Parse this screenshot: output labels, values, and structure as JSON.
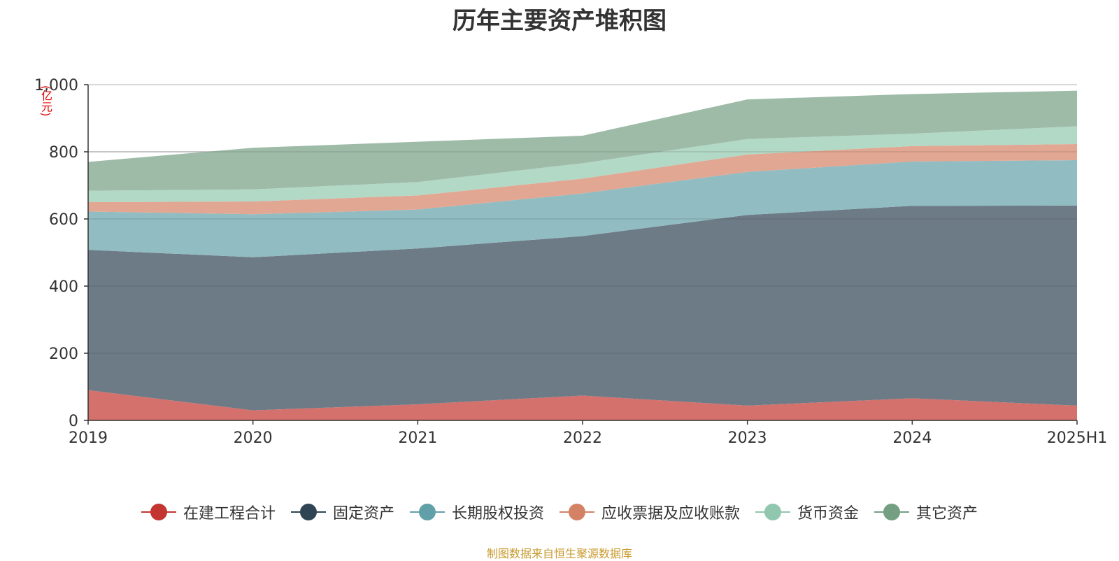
{
  "title": "历年主要资产堆积图",
  "unit_label": "(亿元)",
  "source": "制图数据来自恒生聚源数据库",
  "chart_data": {
    "type": "area",
    "stacked": true,
    "title": "历年主要资产堆积图",
    "ylabel": "(亿元)",
    "x": [
      "2019",
      "2020",
      "2021",
      "2022",
      "2023",
      "2024",
      "2025H1"
    ],
    "ylim": [
      0,
      1000
    ],
    "yticks": [
      0,
      200,
      400,
      600,
      800,
      1000
    ],
    "ytick_labels": [
      "0",
      "200",
      "400",
      "600",
      "800",
      "1,000"
    ],
    "grid": true,
    "legend_position": "bottom",
    "series": [
      {
        "name": "在建工程合计",
        "color": "#c23531",
        "fill": "#d4716d",
        "values": [
          90,
          30,
          48,
          74,
          44,
          66,
          44
        ]
      },
      {
        "name": "固定资产",
        "color": "#2f4554",
        "fill": "#6d7b86",
        "values": [
          418,
          456,
          464,
          475,
          568,
          573,
          596
        ]
      },
      {
        "name": "长期股权投资",
        "color": "#61a0a8",
        "fill": "#90bcc2",
        "values": [
          114,
          128,
          116,
          127,
          128,
          132,
          135
        ]
      },
      {
        "name": "应收票据及应收账款",
        "color": "#d48265",
        "fill": "#e1a792",
        "values": [
          28,
          38,
          42,
          44,
          52,
          46,
          48
        ]
      },
      {
        "name": "货币资金",
        "color": "#91c7ae",
        "fill": "#b2d8c6",
        "values": [
          34,
          36,
          40,
          46,
          46,
          37,
          53
        ]
      },
      {
        "name": "其它资产",
        "color": "#749f83",
        "fill": "#9ebba8",
        "values": [
          86,
          124,
          120,
          82,
          118,
          118,
          106
        ]
      }
    ]
  }
}
